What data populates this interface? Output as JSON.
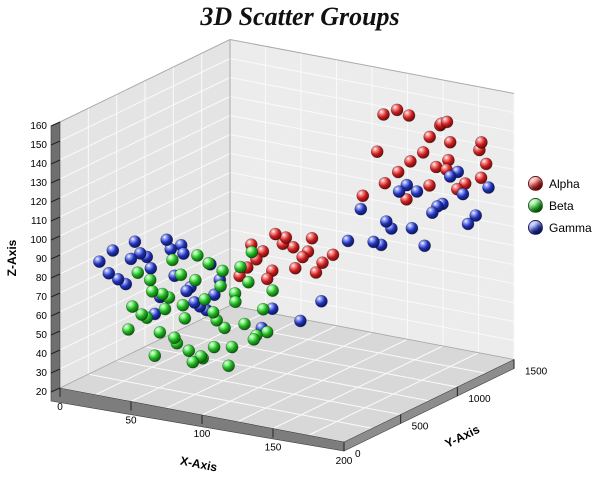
{
  "title": "3D Scatter Groups",
  "legend": {
    "position": "right"
  },
  "chart_data": {
    "type": "scatter",
    "projection": "3d",
    "title": "3D Scatter Groups",
    "xlabel": "X-Axis",
    "ylabel": "Y-Axis",
    "zlabel": "Z-Axis",
    "xlim": [
      0,
      200
    ],
    "ylim": [
      0,
      1500
    ],
    "zlim": [
      20,
      160
    ],
    "xticks": [
      0,
      50,
      100,
      150,
      200
    ],
    "yticks": [
      0,
      500,
      1000,
      1500
    ],
    "zticks": [
      20,
      30,
      40,
      50,
      60,
      70,
      80,
      90,
      100,
      110,
      120,
      130,
      140,
      150,
      160
    ],
    "x_grid_step": 25,
    "y_grid_step": 250,
    "z_grid_step": 10,
    "grid": true,
    "wall_color": "#e4e4e4",
    "back_wall_color": "#ececec",
    "floor_color": "#d8d8d8",
    "grid_color": "#fafafa",
    "series": [
      {
        "name": "Alpha",
        "color": "#c81e1e",
        "color_light": "#ff9a9a",
        "color_dark": "#5e0606",
        "points": [
          [
            150,
            1200,
            150
          ],
          [
            165,
            1300,
            145
          ],
          [
            140,
            1100,
            152
          ],
          [
            175,
            1250,
            138
          ],
          [
            160,
            1350,
            142
          ],
          [
            185,
            1400,
            135
          ],
          [
            155,
            1150,
            128
          ],
          [
            170,
            1280,
            122
          ],
          [
            145,
            1050,
            118
          ],
          [
            180,
            1320,
            115
          ],
          [
            190,
            1380,
            125
          ],
          [
            135,
            980,
            112
          ],
          [
            160,
            1200,
            132
          ],
          [
            172,
            1260,
            148
          ],
          [
            148,
            1120,
            155
          ],
          [
            158,
            1340,
            120
          ],
          [
            166,
            1180,
            116
          ],
          [
            182,
            1420,
            130
          ],
          [
            152,
            1080,
            124
          ],
          [
            176,
            1300,
            112
          ],
          [
            142,
            1020,
            135
          ],
          [
            188,
            1360,
            118
          ],
          [
            163,
            1220,
            140
          ],
          [
            157,
            1090,
            110
          ],
          [
            169,
            1310,
            126
          ],
          [
            95,
            600,
            88
          ],
          [
            105,
            650,
            92
          ],
          [
            115,
            700,
            85
          ],
          [
            88,
            550,
            80
          ],
          [
            120,
            720,
            95
          ],
          [
            100,
            620,
            78
          ],
          [
            110,
            680,
            90
          ],
          [
            92,
            580,
            84
          ],
          [
            125,
            750,
            82
          ],
          [
            85,
            520,
            76
          ],
          [
            108,
            640,
            96
          ],
          [
            118,
            710,
            88
          ],
          [
            98,
            600,
            74
          ],
          [
            130,
            780,
            86
          ],
          [
            90,
            560,
            92
          ],
          [
            113,
            660,
            80
          ],
          [
            103,
            610,
            98
          ],
          [
            122,
            730,
            77
          ]
        ]
      },
      {
        "name": "Beta",
        "color": "#1faf1f",
        "color_light": "#9aff9a",
        "color_dark": "#064d06",
        "points": [
          [
            50,
            300,
            60
          ],
          [
            60,
            350,
            55
          ],
          [
            70,
            400,
            65
          ],
          [
            45,
            250,
            70
          ],
          [
            80,
            450,
            50
          ],
          [
            55,
            320,
            45
          ],
          [
            65,
            380,
            75
          ],
          [
            75,
            420,
            40
          ],
          [
            40,
            220,
            58
          ],
          [
            85,
            480,
            68
          ],
          [
            90,
            500,
            52
          ],
          [
            35,
            200,
            62
          ],
          [
            58,
            340,
            78
          ],
          [
            68,
            390,
            35
          ],
          [
            78,
            440,
            72
          ],
          [
            48,
            280,
            48
          ],
          [
            88,
            490,
            82
          ],
          [
            95,
            520,
            44
          ],
          [
            52,
            310,
            66
          ],
          [
            62,
            360,
            38
          ],
          [
            72,
            410,
            84
          ],
          [
            42,
            240,
            56
          ],
          [
            82,
            460,
            30
          ],
          [
            92,
            510,
            74
          ],
          [
            100,
            540,
            60
          ],
          [
            38,
            210,
            80
          ],
          [
            56,
            330,
            42
          ],
          [
            66,
            385,
            88
          ],
          [
            76,
            430,
            54
          ],
          [
            46,
            260,
            36
          ],
          [
            86,
            470,
            64
          ],
          [
            96,
            530,
            46
          ],
          [
            105,
            560,
            70
          ],
          [
            33,
            190,
            50
          ],
          [
            54,
            315,
            86
          ],
          [
            64,
            370,
            32
          ],
          [
            74,
            425,
            58
          ],
          [
            44,
            245,
            76
          ],
          [
            84,
            465,
            40
          ],
          [
            94,
            515,
            90
          ],
          [
            102,
            550,
            48
          ],
          [
            59,
            345,
            62
          ],
          [
            69,
            395,
            34
          ],
          [
            79,
            445,
            80
          ],
          [
            49,
            290,
            68
          ]
        ]
      },
      {
        "name": "Gamma",
        "color": "#2030b0",
        "color_light": "#9aa8ff",
        "color_dark": "#060f55",
        "points": [
          [
            30,
            250,
            85
          ],
          [
            40,
            300,
            80
          ],
          [
            50,
            350,
            90
          ],
          [
            25,
            200,
            75
          ],
          [
            60,
            400,
            70
          ],
          [
            35,
            270,
            88
          ],
          [
            45,
            320,
            65
          ],
          [
            55,
            380,
            92
          ],
          [
            20,
            180,
            78
          ],
          [
            65,
            420,
            60
          ],
          [
            70,
            450,
            82
          ],
          [
            28,
            230,
            72
          ],
          [
            48,
            340,
            95
          ],
          [
            58,
            390,
            68
          ],
          [
            38,
            290,
            86
          ],
          [
            68,
            440,
            58
          ],
          [
            22,
            190,
            90
          ],
          [
            52,
            360,
            76
          ],
          [
            62,
            410,
            62
          ],
          [
            32,
            260,
            94
          ],
          [
            72,
            460,
            66
          ],
          [
            42,
            310,
            56
          ],
          [
            15,
            160,
            84
          ],
          [
            75,
            470,
            74
          ],
          [
            57,
            375,
            88
          ],
          [
            150,
            1000,
            100
          ],
          [
            160,
            1100,
            95
          ],
          [
            170,
            1200,
            105
          ],
          [
            145,
            950,
            90
          ],
          [
            180,
            1300,
            110
          ],
          [
            155,
            1050,
            115
          ],
          [
            165,
            1150,
            85
          ],
          [
            175,
            1250,
            120
          ],
          [
            140,
            900,
            108
          ],
          [
            185,
            1350,
            98
          ],
          [
            190,
            1400,
            112
          ],
          [
            135,
            850,
            92
          ],
          [
            158,
            1080,
            118
          ],
          [
            168,
            1180,
            102
          ],
          [
            148,
            980,
            88
          ],
          [
            178,
            1280,
            122
          ],
          [
            152,
            1020,
            96
          ],
          [
            172,
            1220,
            106
          ],
          [
            162,
            1120,
            114
          ],
          [
            182,
            1320,
            94
          ],
          [
            100,
            620,
            58
          ],
          [
            115,
            680,
            52
          ],
          [
            125,
            740,
            62
          ],
          [
            95,
            590,
            48
          ]
        ]
      }
    ]
  }
}
